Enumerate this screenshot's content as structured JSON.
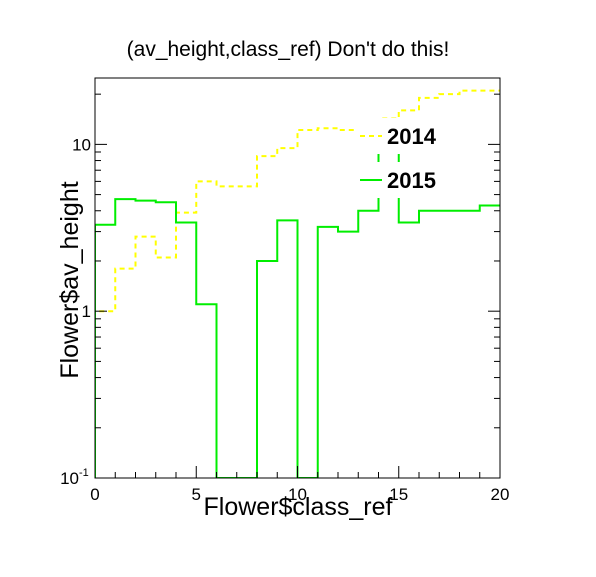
{
  "chart_data": {
    "type": "line",
    "title": "(av_height,class_ref) Don't do this!",
    "xlabel": "Flower$class_ref",
    "ylabel": "Flower$av_height",
    "xlim": [
      0,
      20
    ],
    "ylim": [
      0.1,
      25
    ],
    "y_scale": "log",
    "grid": false,
    "legend_position": "top-right",
    "x_ticks": [
      "0",
      "5",
      "10",
      "15",
      "20"
    ],
    "y_ticks": [
      {
        "value": 0.1,
        "label": "10",
        "exponent": "-1"
      },
      {
        "value": 1,
        "label": "1",
        "exponent": ""
      },
      {
        "value": 10,
        "label": "10",
        "exponent": ""
      }
    ],
    "bin_edges": [
      0,
      1,
      2,
      3,
      4,
      5,
      6,
      7,
      8,
      9,
      10,
      11,
      12,
      13,
      14,
      15,
      16,
      17,
      18,
      19,
      20
    ],
    "series": [
      {
        "name": "2014",
        "color": "#ffff00",
        "style": "dashed",
        "values": [
          1.0,
          1.8,
          2.8,
          2.1,
          3.9,
          6.0,
          5.6,
          5.6,
          8.5,
          9.5,
          12.2,
          12.5,
          12.2,
          13.2,
          14.3,
          16.0,
          19.0,
          20.0,
          21.0,
          21.0
        ]
      },
      {
        "name": "2015",
        "color": "#00ee00",
        "style": "solid",
        "values": [
          3.3,
          4.7,
          4.6,
          4.5,
          3.4,
          1.1,
          0.1,
          0.1,
          2.0,
          3.5,
          0.1,
          3.2,
          3.0,
          4.0,
          14.0,
          3.4,
          4.0,
          4.0,
          4.0,
          4.3
        ]
      }
    ]
  }
}
